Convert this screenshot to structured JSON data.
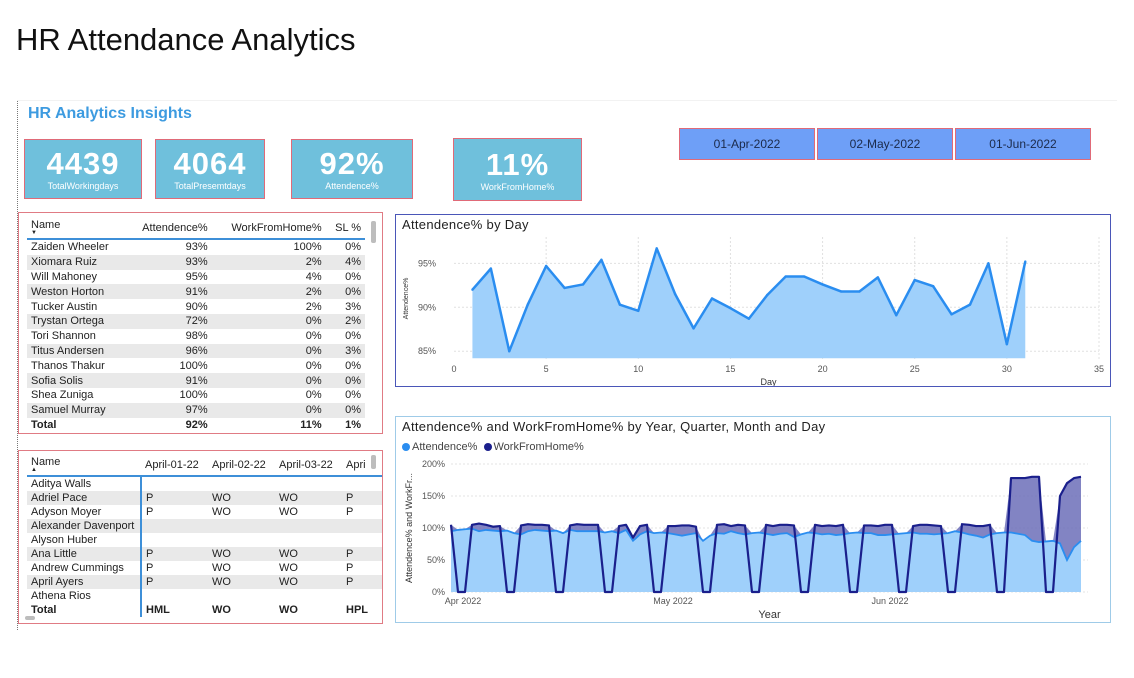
{
  "slide_title": "HR Attendance Analytics",
  "report_title": "HR Analytics Insights",
  "kpis": [
    {
      "value": "4439",
      "label": "TotalWorkingdays"
    },
    {
      "value": "4064",
      "label": "TotalPresemtdays"
    },
    {
      "value": "92%",
      "label": "Attendence%"
    },
    {
      "value": "11%",
      "label": "WorkFromHome%"
    }
  ],
  "date_filters": [
    "01-Apr-2022",
    "02-May-2022",
    "01-Jun-2022"
  ],
  "colors": {
    "accent": "#3d9be0",
    "kpi_bg": "#6fc0dc",
    "kpi_border": "#e06a78",
    "filter_bg": "#6e9ff7",
    "area_fill": "#9fd0fb",
    "line": "#2a8df0",
    "wfh_line": "#1a1f8c",
    "wfh_fill": "#6c6fb8"
  },
  "table1": {
    "headers": [
      "Name",
      "Attendence%",
      "WorkFromHome%",
      "SL %"
    ],
    "rows": [
      [
        "Zaiden Wheeler",
        "93%",
        "100%",
        "0%"
      ],
      [
        "Xiomara Ruiz",
        "93%",
        "2%",
        "4%"
      ],
      [
        "Will Mahoney",
        "95%",
        "4%",
        "0%"
      ],
      [
        "Weston Horton",
        "91%",
        "2%",
        "0%"
      ],
      [
        "Tucker Austin",
        "90%",
        "2%",
        "3%"
      ],
      [
        "Trystan Ortega",
        "72%",
        "0%",
        "2%"
      ],
      [
        "Tori Shannon",
        "98%",
        "0%",
        "0%"
      ],
      [
        "Titus Andersen",
        "96%",
        "0%",
        "3%"
      ],
      [
        "Thanos Thakur",
        "100%",
        "0%",
        "0%"
      ],
      [
        "Sofia Solis",
        "91%",
        "0%",
        "0%"
      ],
      [
        "Shea Zuniga",
        "100%",
        "0%",
        "0%"
      ],
      [
        "Samuel Murray",
        "97%",
        "0%",
        "0%"
      ]
    ],
    "total": [
      "Total",
      "92%",
      "11%",
      "1%"
    ]
  },
  "table2": {
    "headers": [
      "Name",
      "April-01-22",
      "April-02-22",
      "April-03-22",
      "Apri"
    ],
    "rows": [
      [
        "Aditya Walls",
        "",
        "",
        "",
        ""
      ],
      [
        "Adriel Pace",
        "P",
        "WO",
        "WO",
        "P"
      ],
      [
        "Adyson Moyer",
        "P",
        "WO",
        "WO",
        "P"
      ],
      [
        "Alexander Davenport",
        "",
        "",
        "",
        ""
      ],
      [
        "Alyson Huber",
        "",
        "",
        "",
        ""
      ],
      [
        "Ana Little",
        "P",
        "WO",
        "WO",
        "P"
      ],
      [
        "Andrew Cummings",
        "P",
        "WO",
        "WO",
        "P"
      ],
      [
        "April Ayers",
        "P",
        "WO",
        "WO",
        "P"
      ],
      [
        "Athena Rios",
        "",
        "",
        "",
        ""
      ]
    ],
    "total": [
      "Total",
      "HML",
      "WO",
      "WO",
      "HPL"
    ]
  },
  "chart_data": [
    {
      "type": "area",
      "title": "Attendence% by Day",
      "xlabel": "Day",
      "ylabel": "Attendence%",
      "xlim": [
        0,
        35
      ],
      "ylim": [
        84,
        98
      ],
      "xticks": [
        0,
        5,
        10,
        15,
        20,
        25,
        30,
        35
      ],
      "yticks": [
        85,
        90,
        95
      ],
      "ytick_labels": [
        "85%",
        "90%",
        "95%"
      ],
      "grid": true,
      "x": [
        1,
        2,
        3,
        4,
        5,
        6,
        7,
        8,
        9,
        10,
        11,
        12,
        13,
        14,
        15,
        16,
        17,
        18,
        19,
        20,
        21,
        22,
        23,
        24,
        25,
        26,
        27,
        28,
        29,
        30,
        31
      ],
      "values": [
        92.0,
        94.4,
        85.0,
        90.3,
        94.7,
        92.2,
        92.6,
        95.4,
        90.3,
        89.6,
        96.7,
        91.5,
        87.6,
        91.0,
        89.9,
        88.7,
        91.4,
        93.5,
        93.5,
        92.6,
        91.8,
        91.8,
        93.4,
        89.1,
        93.1,
        92.4,
        89.2,
        90.3,
        95.0,
        85.8,
        95.2
      ]
    },
    {
      "type": "area",
      "title": "Attendence% and WorkFromHome% by Year, Quarter, Month and Day",
      "xlabel": "Year",
      "ylabel": "Attendence% and WorkFr...",
      "legend": "top-left",
      "series_names": [
        "Attendence%",
        "WorkFromHome%"
      ],
      "ylim": [
        0,
        200
      ],
      "yticks": [
        0,
        50,
        100,
        150,
        200
      ],
      "ytick_labels": [
        "0%",
        "50%",
        "100%",
        "150%",
        "200%"
      ],
      "xtick_labels": [
        "Apr 2022",
        "May 2022",
        "Jun 2022"
      ],
      "xtick_days": [
        1,
        31,
        62
      ],
      "xlim": [
        1,
        92
      ],
      "grid": true,
      "series": [
        {
          "name": "Attendence%",
          "x": [
            1,
            2,
            3,
            4,
            5,
            6,
            7,
            8,
            9,
            10,
            11,
            12,
            13,
            14,
            15,
            16,
            17,
            18,
            19,
            20,
            21,
            22,
            23,
            24,
            25,
            26,
            27,
            28,
            29,
            30,
            31,
            32,
            33,
            34,
            35,
            36,
            37,
            38,
            39,
            40,
            41,
            42,
            43,
            44,
            45,
            46,
            47,
            48,
            49,
            50,
            51,
            52,
            53,
            54,
            55,
            56,
            57,
            58,
            59,
            60,
            61,
            62,
            63,
            64,
            65,
            66,
            67,
            68,
            69,
            70,
            71,
            72,
            73,
            74,
            75,
            76,
            77,
            78,
            79,
            80,
            81,
            82,
            83,
            84,
            85,
            86,
            87,
            88,
            89,
            90,
            91
          ],
          "values": [
            95,
            97,
            98,
            99,
            95,
            97,
            96,
            95,
            96,
            92,
            90,
            95,
            97,
            96,
            95,
            96,
            92,
            97,
            95,
            95,
            95,
            95,
            93,
            95,
            92,
            97,
            80,
            90,
            95,
            92,
            93,
            92,
            90,
            88,
            90,
            92,
            80,
            88,
            92,
            91,
            95,
            92,
            90,
            92,
            93,
            91,
            89,
            91,
            92,
            86,
            90,
            93,
            92,
            90,
            91,
            89,
            90,
            92,
            93,
            92,
            92,
            89,
            89,
            90,
            91,
            92,
            93,
            91,
            91,
            90,
            91,
            92,
            95,
            93,
            90,
            88,
            85,
            90,
            92,
            93,
            93,
            91,
            89,
            80,
            78,
            79,
            80,
            76,
            50,
            70,
            80
          ]
        },
        {
          "name": "WorkFromHome%",
          "x": [
            1,
            2,
            3,
            4,
            5,
            6,
            7,
            8,
            9,
            10,
            11,
            12,
            13,
            14,
            15,
            16,
            17,
            18,
            19,
            20,
            21,
            22,
            23,
            24,
            25,
            26,
            27,
            28,
            29,
            30,
            31,
            32,
            33,
            34,
            35,
            36,
            37,
            38,
            39,
            40,
            41,
            42,
            43,
            44,
            45,
            46,
            47,
            48,
            49,
            50,
            51,
            52,
            53,
            54,
            55,
            56,
            57,
            58,
            59,
            60,
            61,
            62,
            63,
            64,
            65,
            66,
            67,
            68,
            69,
            70,
            71,
            72,
            73,
            74,
            75,
            76,
            77,
            78,
            79,
            80,
            81,
            82,
            83,
            84,
            85,
            86,
            87,
            88,
            89,
            90,
            91
          ],
          "values": [
            105,
            0,
            0,
            105,
            107,
            105,
            102,
            103,
            0,
            0,
            104,
            106,
            105,
            105,
            104,
            0,
            0,
            104,
            106,
            105,
            105,
            105,
            0,
            0,
            103,
            105,
            85,
            103,
            105,
            0,
            0,
            103,
            103,
            104,
            104,
            102,
            0,
            0,
            105,
            106,
            103,
            105,
            104,
            0,
            0,
            105,
            103,
            105,
            105,
            104,
            0,
            0,
            105,
            103,
            104,
            103,
            105,
            0,
            0,
            104,
            104,
            103,
            105,
            105,
            0,
            0,
            103,
            105,
            105,
            104,
            103,
            0,
            0,
            106,
            105,
            103,
            103,
            105,
            0,
            0,
            178,
            178,
            178,
            180,
            180,
            0,
            0,
            150,
            170,
            178,
            180
          ]
        }
      ]
    }
  ]
}
